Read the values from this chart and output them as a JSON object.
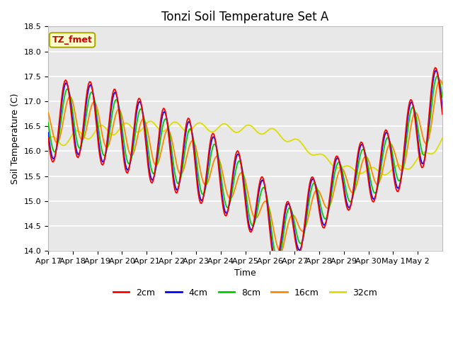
{
  "title": "Tonzi Soil Temperature Set A",
  "xlabel": "Time",
  "ylabel": "Soil Temperature (C)",
  "ylim": [
    14.0,
    18.5
  ],
  "legend_label": "TZ_fmet",
  "line_labels": [
    "2cm",
    "4cm",
    "8cm",
    "16cm",
    "32cm"
  ],
  "line_colors": [
    "#ff0000",
    "#0000ff",
    "#00cc00",
    "#ff8800",
    "#dddd00"
  ],
  "plot_bg_color": "#e8e8e8",
  "x_tick_labels": [
    "Apr 17",
    "Apr 18",
    "Apr 19",
    "Apr 20",
    "Apr 21",
    "Apr 22",
    "Apr 23",
    "Apr 24",
    "Apr 25",
    "Apr 26",
    "Apr 27",
    "Apr 28",
    "Apr 29",
    "Apr 30",
    "May 1",
    "May 2"
  ],
  "title_fontsize": 12,
  "label_fontsize": 9,
  "tick_fontsize": 8,
  "legend_box_facecolor": "#ffffcc",
  "legend_box_edgecolor": "#aaaa00"
}
